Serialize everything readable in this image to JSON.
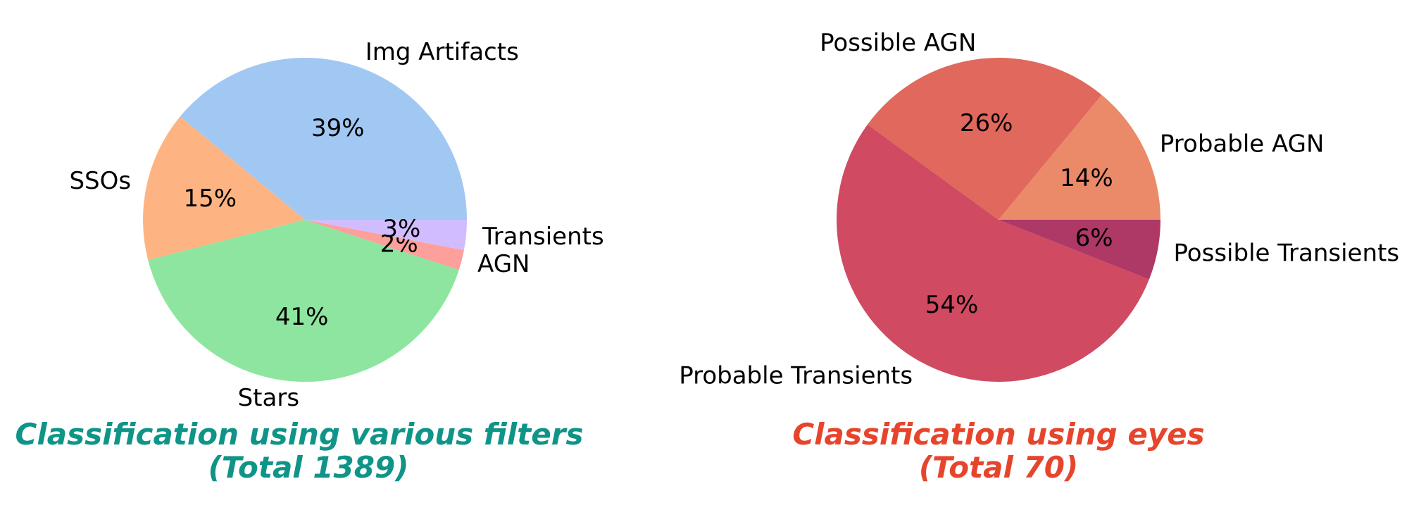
{
  "chart_data": [
    {
      "type": "pie",
      "title_lines": [
        "Classification using various filters",
        "(Total 1389)"
      ],
      "title_color": "#0f9488",
      "slices": [
        {
          "label": "Img Artifacts",
          "value": 39,
          "pct_label": "39%",
          "color": "#a1c8f2"
        },
        {
          "label": "SSOs",
          "value": 15,
          "pct_label": "15%",
          "color": "#fdb482"
        },
        {
          "label": "Stars",
          "value": 41,
          "pct_label": "41%",
          "color": "#8de59f"
        },
        {
          "label": "AGN",
          "value": 2,
          "pct_label": "2%",
          "color": "#fd9f9b"
        },
        {
          "label": "Transients",
          "value": 3,
          "pct_label": "3%",
          "color": "#d0bcfe"
        }
      ]
    },
    {
      "type": "pie",
      "title_lines": [
        "Classification using eyes",
        "(Total 70)"
      ],
      "title_color": "#e6452c",
      "slices": [
        {
          "label": "Probable AGN",
          "value": 14,
          "pct_label": "14%",
          "color": "#ea8a68"
        },
        {
          "label": "Possible AGN",
          "value": 26,
          "pct_label": "26%",
          "color": "#e1685d"
        },
        {
          "label": "Probable Transients",
          "value": 54,
          "pct_label": "54%",
          "color": "#d04a62"
        },
        {
          "label": "Possible Transients",
          "value": 6,
          "pct_label": "6%",
          "color": "#ae3866"
        }
      ]
    }
  ]
}
